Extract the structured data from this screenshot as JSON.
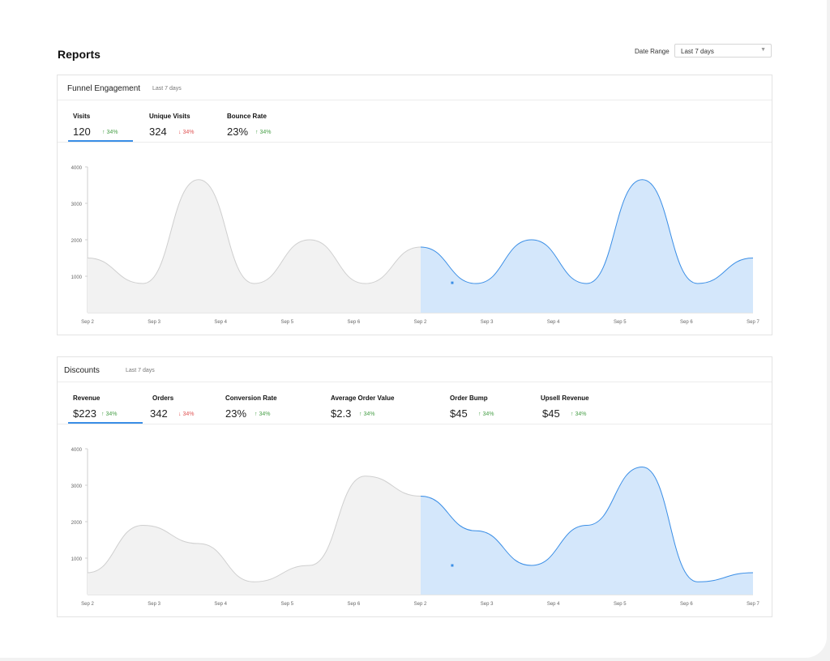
{
  "page": {
    "title": "Reports"
  },
  "date_range": {
    "label": "Date Range",
    "selected": "Last 7 days",
    "chevron_icon": "chevron-down-icon"
  },
  "colors": {
    "accent": "#3a8ee6",
    "accent_fill": "#d4e7fb",
    "past_fill": "#f2f2f2",
    "past_line": "#cfcfcf",
    "up": "#4aa04a",
    "down": "#e05555"
  },
  "funnel": {
    "title": "Funnel Engagement",
    "subtitle": "Last 7 days",
    "metrics": [
      {
        "label": "Visits",
        "value": "120",
        "delta": "34%",
        "direction": "up"
      },
      {
        "label": "Unique Visits",
        "value": "324",
        "delta": "34%",
        "direction": "down"
      },
      {
        "label": "Bounce Rate",
        "value": "23%",
        "delta": "34%",
        "direction": "up"
      }
    ]
  },
  "discounts": {
    "title": "Discounts",
    "subtitle": "Last 7 days",
    "metrics": [
      {
        "label": "Revenue",
        "value": "$223",
        "delta": "34%",
        "direction": "up"
      },
      {
        "label": "Orders",
        "value": "342",
        "delta": "34%",
        "direction": "down"
      },
      {
        "label": "Conversion Rate",
        "value": "23%",
        "delta": "34%",
        "direction": "up"
      },
      {
        "label": "Average Order Value",
        "value": "$2.3",
        "delta": "34%",
        "direction": "up"
      },
      {
        "label": "Order Bump",
        "value": "$45",
        "delta": "34%",
        "direction": "up"
      },
      {
        "label": "Upsell Revenue",
        "value": "$45",
        "delta": "34%",
        "direction": "up"
      }
    ]
  },
  "chart_data": [
    {
      "type": "area",
      "yticks": [
        1000,
        2000,
        3000,
        4000
      ],
      "ylim": [
        0,
        4000
      ],
      "x_labels": [
        "Sep 2",
        "Sep 3",
        "Sep 4",
        "Sep 5",
        "Sep 6",
        "Sep 2",
        "Sep 3",
        "Sep 4",
        "Sep 5",
        "Sep 6",
        "Sep 7"
      ],
      "series": [
        {
          "values": [
            1500,
            800,
            3650,
            800,
            2000,
            800,
            1800
          ]
        },
        {
          "values": [
            1800,
            800,
            2000,
            800,
            3650,
            800,
            1500
          ]
        }
      ],
      "marker_value": 820
    },
    {
      "type": "area",
      "yticks": [
        1000,
        2000,
        3000,
        4000
      ],
      "ylim": [
        0,
        4000
      ],
      "x_labels": [
        "Sep 2",
        "Sep 3",
        "Sep 4",
        "Sep 5",
        "Sep 6",
        "Sep 2",
        "Sep 3",
        "Sep 4",
        "Sep 5",
        "Sep 6",
        "Sep 7"
      ],
      "series": [
        {
          "values": [
            600,
            1900,
            1400,
            350,
            800,
            3250,
            2700
          ]
        },
        {
          "values": [
            2700,
            1750,
            800,
            1900,
            3500,
            350,
            600
          ]
        }
      ],
      "marker_value": 800
    }
  ]
}
